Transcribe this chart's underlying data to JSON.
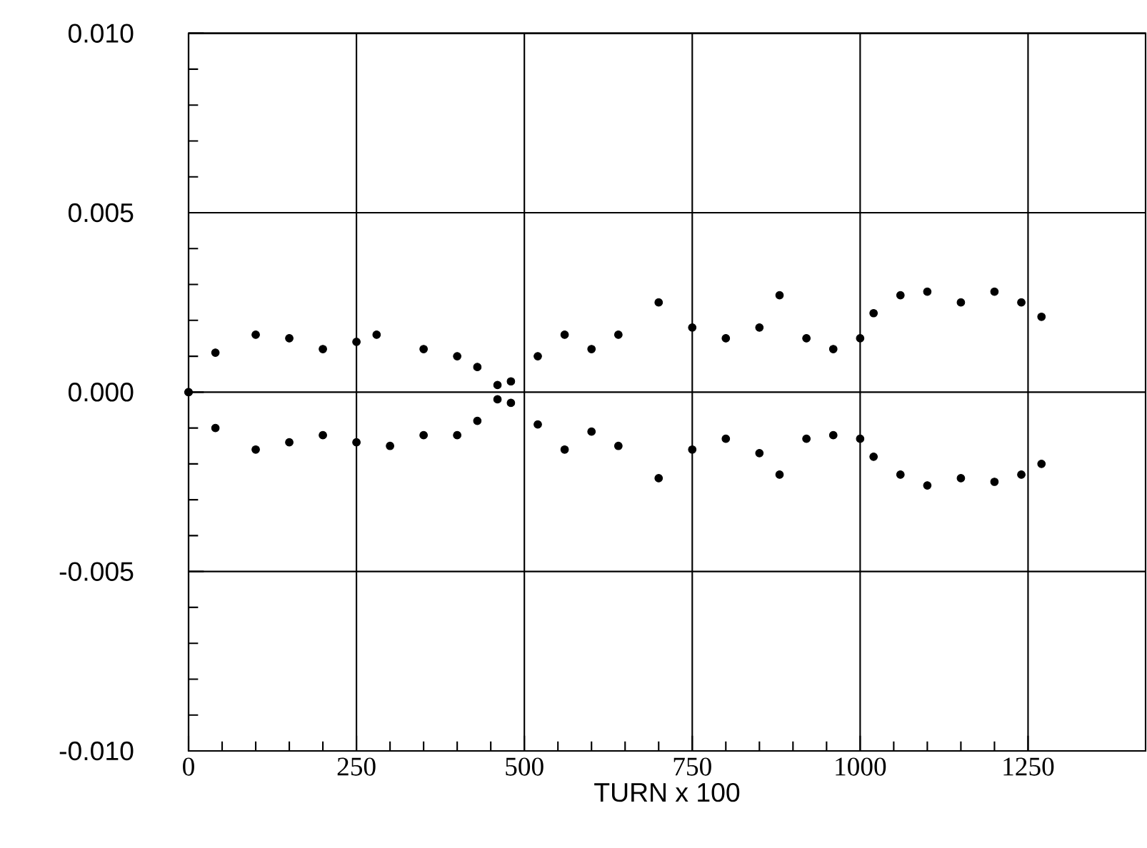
{
  "chart_data": {
    "type": "scatter",
    "xlabel": "TURN x 100",
    "xlim": [
      0,
      1425
    ],
    "ylim": [
      -0.01,
      0.01
    ],
    "xticks": [
      0,
      250,
      500,
      750,
      1000,
      1250
    ],
    "yticks": [
      {
        "value": -0.01,
        "label": "-0.010"
      },
      {
        "value": -0.005,
        "label": "-0.005"
      },
      {
        "value": 0,
        "label": "0.000"
      },
      {
        "value": 0.005,
        "label": "0.005"
      },
      {
        "value": 0.01,
        "label": "0.010"
      }
    ],
    "grid": true,
    "series": [
      {
        "color": "#000000",
        "x": [
          0,
          40,
          100,
          150,
          200,
          250,
          280,
          350,
          400,
          430,
          460,
          480,
          520,
          560,
          600,
          640,
          700,
          750,
          800,
          850,
          880,
          920,
          960,
          1000,
          1020,
          1060,
          1100,
          1150,
          1200,
          1240,
          1270,
          0,
          40,
          100,
          150,
          200,
          250,
          300,
          350,
          400,
          430,
          460,
          480,
          520,
          560,
          600,
          640,
          700,
          750,
          800,
          850,
          880,
          920,
          960,
          1000,
          1020,
          1060,
          1100,
          1150,
          1200,
          1240,
          1270
        ],
        "values": [
          0,
          0.0011,
          0.0016,
          0.0015,
          0.0012,
          0.0014,
          0.0016,
          0.0012,
          0.001,
          0.0007,
          0.0002,
          0.0003,
          0.001,
          0.0016,
          0.0012,
          0.0016,
          0.0025,
          0.0018,
          0.0015,
          0.0018,
          0.0027,
          0.0015,
          0.0012,
          0.0015,
          0.0022,
          0.0027,
          0.0028,
          0.0025,
          0.0028,
          0.0025,
          0.0021,
          0,
          -0.001,
          -0.0016,
          -0.0014,
          -0.0012,
          -0.0014,
          -0.0015,
          -0.0012,
          -0.0012,
          -0.0008,
          -0.0002,
          -0.0003,
          -0.0009,
          -0.0016,
          -0.0011,
          -0.0015,
          -0.0024,
          -0.0016,
          -0.0013,
          -0.0017,
          -0.0023,
          -0.0013,
          -0.0012,
          -0.0013,
          -0.0018,
          -0.0023,
          -0.0026,
          -0.0024,
          -0.0025,
          -0.0023,
          -0.002
        ]
      }
    ]
  }
}
